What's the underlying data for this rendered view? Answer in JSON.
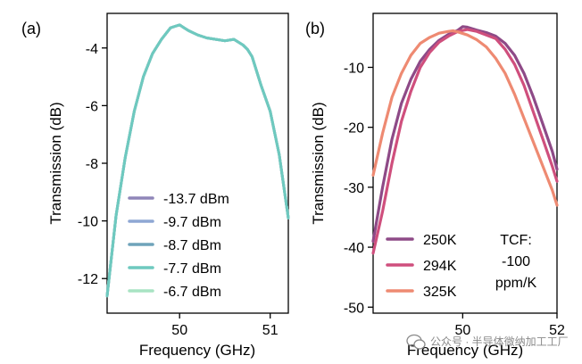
{
  "chart_data": [
    {
      "type": "line",
      "panel": "(a)",
      "xlabel": "Frequency (GHz)",
      "ylabel": "Transmission (dB)",
      "xlim": [
        49.2,
        51.2
      ],
      "ylim": [
        -13.2,
        -2.8
      ],
      "xticks": [
        50,
        51
      ],
      "xtick_labels": [
        "50",
        "51"
      ],
      "yticks": [
        -4,
        -6,
        -8,
        -10,
        -12
      ],
      "ytick_labels": [
        "-4",
        "-6",
        "-8",
        "-10",
        "-12"
      ],
      "legend_position": "bottom-left",
      "x": [
        49.2,
        49.3,
        49.4,
        49.5,
        49.6,
        49.7,
        49.8,
        49.85,
        49.9,
        49.95,
        50.0,
        50.05,
        50.1,
        50.2,
        50.3,
        50.4,
        50.5,
        50.6,
        50.7,
        50.75,
        50.8,
        50.9,
        51.0,
        51.1,
        51.2
      ],
      "series": [
        {
          "name": "-13.7 dBm",
          "color": "#8f86b8",
          "values": [
            -12.6,
            -9.8,
            -7.8,
            -6.2,
            -5.0,
            -4.2,
            -3.7,
            -3.5,
            -3.3,
            -3.25,
            -3.2,
            -3.3,
            -3.4,
            -3.55,
            -3.65,
            -3.7,
            -3.75,
            -3.7,
            -3.9,
            -4.05,
            -4.3,
            -5.3,
            -6.2,
            -7.7,
            -9.9
          ]
        },
        {
          "name": "-9.7 dBm",
          "color": "#8ea7d4",
          "values": [
            -12.6,
            -9.8,
            -7.8,
            -6.2,
            -5.0,
            -4.2,
            -3.7,
            -3.5,
            -3.3,
            -3.25,
            -3.2,
            -3.3,
            -3.4,
            -3.55,
            -3.65,
            -3.7,
            -3.75,
            -3.7,
            -3.9,
            -4.05,
            -4.3,
            -5.3,
            -6.2,
            -7.7,
            -9.9
          ]
        },
        {
          "name": "-8.7 dBm",
          "color": "#6fa3ba",
          "values": [
            -12.6,
            -9.8,
            -7.8,
            -6.2,
            -5.0,
            -4.2,
            -3.7,
            -3.5,
            -3.3,
            -3.25,
            -3.2,
            -3.3,
            -3.4,
            -3.55,
            -3.65,
            -3.7,
            -3.75,
            -3.7,
            -3.9,
            -4.05,
            -4.3,
            -5.3,
            -6.2,
            -7.7,
            -9.9
          ]
        },
        {
          "name": "-7.7 dBm",
          "color": "#6ec9bf",
          "values": [
            -12.6,
            -9.8,
            -7.8,
            -6.2,
            -5.0,
            -4.2,
            -3.7,
            -3.5,
            -3.3,
            -3.25,
            -3.2,
            -3.3,
            -3.4,
            -3.55,
            -3.65,
            -3.7,
            -3.75,
            -3.7,
            -3.9,
            -4.05,
            -4.3,
            -5.3,
            -6.2,
            -7.7,
            -9.9
          ]
        },
        {
          "name": "-6.7 dBm",
          "color": "#a8e3c3",
          "values": [
            -12.6,
            -9.8,
            -7.8,
            -6.2,
            -5.0,
            -4.2,
            -3.7,
            -3.5,
            -3.3,
            -3.25,
            -3.2,
            -3.3,
            -3.4,
            -3.55,
            -3.65,
            -3.7,
            -3.75,
            -3.7,
            -3.9,
            -4.05,
            -4.3,
            -5.3,
            -6.2,
            -7.7,
            -9.9
          ]
        }
      ],
      "top_series": "-7.7 dBm"
    },
    {
      "type": "line",
      "panel": "(b)",
      "xlabel": "Frequency (GHz)",
      "ylabel": "Transmission (dB)",
      "xlim": [
        48.1,
        52.0
      ],
      "ylim": [
        -51,
        -1
      ],
      "xticks": [
        50,
        52
      ],
      "xtick_labels": [
        "50",
        "52"
      ],
      "yticks": [
        -10,
        -20,
        -30,
        -40,
        -50
      ],
      "ytick_labels": [
        "-10",
        "-20",
        "-30",
        "-40",
        "-50"
      ],
      "legend_position": "bottom-left",
      "annotation": [
        "TCF:",
        "-100",
        "ppm/K"
      ],
      "series": [
        {
          "name": "250K",
          "color": "#8e4a87",
          "x": [
            48.1,
            48.3,
            48.5,
            48.7,
            48.9,
            49.1,
            49.3,
            49.5,
            49.7,
            49.9,
            50.0,
            50.1,
            50.3,
            50.5,
            50.7,
            50.9,
            51.1,
            51.3,
            51.5,
            51.7,
            51.9,
            52.0
          ],
          "values": [
            -39,
            -30,
            -22,
            -16,
            -12,
            -9,
            -7,
            -5.5,
            -4.5,
            -3.8,
            -3.2,
            -3.3,
            -3.8,
            -4.2,
            -4.8,
            -6,
            -8,
            -11,
            -15,
            -19.5,
            -24,
            -27
          ]
        },
        {
          "name": "294K",
          "color": "#cf4f7d",
          "x": [
            48.1,
            48.3,
            48.5,
            48.7,
            48.9,
            49.1,
            49.3,
            49.5,
            49.7,
            49.9,
            50.1,
            50.3,
            50.4,
            50.5,
            50.7,
            50.9,
            51.1,
            51.3,
            51.5,
            51.7,
            51.9,
            52.0
          ],
          "values": [
            -41,
            -34,
            -26,
            -19,
            -14,
            -10,
            -7.5,
            -5.8,
            -4.8,
            -4.0,
            -3.7,
            -4.0,
            -4.3,
            -4.6,
            -5.2,
            -7,
            -9.5,
            -13,
            -17.5,
            -22,
            -26.5,
            -29
          ]
        },
        {
          "name": "325K",
          "color": "#ee8a72",
          "x": [
            48.1,
            48.3,
            48.5,
            48.7,
            48.9,
            49.1,
            49.3,
            49.5,
            49.7,
            49.8,
            49.9,
            50.1,
            50.3,
            50.5,
            50.7,
            50.9,
            51.1,
            51.3,
            51.5,
            51.7,
            51.9,
            52.0
          ],
          "values": [
            -28,
            -21,
            -15,
            -11,
            -8,
            -6,
            -5,
            -4.3,
            -4.0,
            -3.9,
            -4.1,
            -4.6,
            -5.4,
            -6.6,
            -8.5,
            -11,
            -14.5,
            -18.5,
            -22.5,
            -26.5,
            -30.5,
            -33
          ]
        }
      ]
    }
  ],
  "watermark": "公众号 · 半导体微纳加工工厂"
}
